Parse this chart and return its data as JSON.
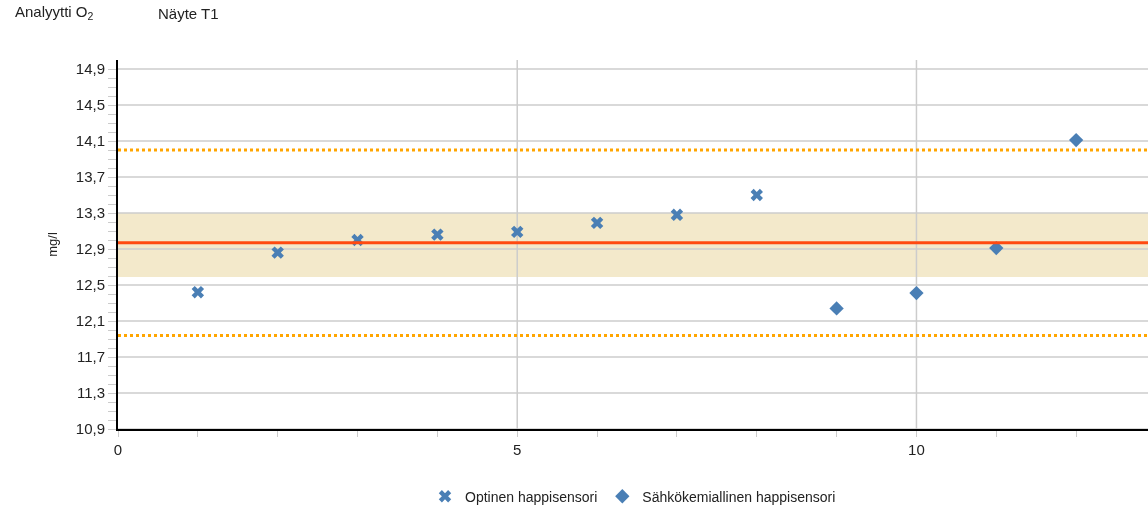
{
  "chart_data": {
    "type": "scatter",
    "title": "Analyytti O$_{2}$",
    "subtitle": "Näyte T1",
    "ylabel": "mg/l",
    "xlim": [
      0,
      12.9
    ],
    "xticks": [
      0,
      {
        "value": 1,
        "label": null
      },
      {
        "value": 2,
        "label": null
      },
      {
        "value": 3,
        "label": null
      },
      {
        "value": 4,
        "label": null
      },
      5,
      {
        "value": 6,
        "label": null
      },
      {
        "value": 7,
        "label": null
      },
      {
        "value": 8,
        "label": null
      },
      {
        "value": 9,
        "label": null
      },
      10,
      {
        "value": 11,
        "label": null
      },
      {
        "value": 12,
        "label": null
      }
    ],
    "ylim": [
      10.9,
      15.0
    ],
    "yticks": [
      {
        "value": 10.9,
        "label": "10,9"
      },
      {
        "value": 11.3,
        "label": "11,3"
      },
      {
        "value": 11.7,
        "label": "11,7"
      },
      {
        "value": 12.1,
        "label": "12,1"
      },
      {
        "value": 12.5,
        "label": "12,5"
      },
      {
        "value": 12.9,
        "label": "12,9"
      },
      {
        "value": 13.3,
        "label": "13,3"
      },
      {
        "value": 13.7,
        "label": "13,7"
      },
      {
        "value": 14.1,
        "label": "14,1"
      },
      {
        "value": 14.5,
        "label": "14,5"
      },
      {
        "value": 14.9,
        "label": "14,9"
      }
    ],
    "grid": true,
    "legend": "bottom",
    "series": [
      {
        "name": "Optinen happisensori",
        "color": "#4a7fb5",
        "marker": "cross",
        "x": [
          1,
          2,
          3,
          4,
          5,
          6,
          7,
          8
        ],
        "values": [
          12.42,
          12.86,
          13.0,
          13.06,
          13.09,
          13.19,
          13.28,
          13.5
        ]
      },
      {
        "name": "Sähkökemiallinen happisensori",
        "color": "#4a7fb5",
        "marker": "diamond",
        "x": [
          9,
          10,
          11,
          12
        ],
        "values": [
          12.24,
          12.41,
          12.91,
          14.11
        ]
      }
    ],
    "bands": [
      {
        "axis": "y",
        "from": 12.59,
        "to": 13.3,
        "color": "#f3e9cb"
      }
    ],
    "ref_lines": [
      {
        "axis": "y",
        "value": 12.97,
        "color": "#ff4a10",
        "line_style": "solid"
      },
      {
        "axis": "y",
        "value": 14.0,
        "color": "#ffa500",
        "line_style": "dotted"
      },
      {
        "axis": "y",
        "value": 11.94,
        "color": "#ffa500",
        "line_style": "dotted"
      }
    ]
  }
}
